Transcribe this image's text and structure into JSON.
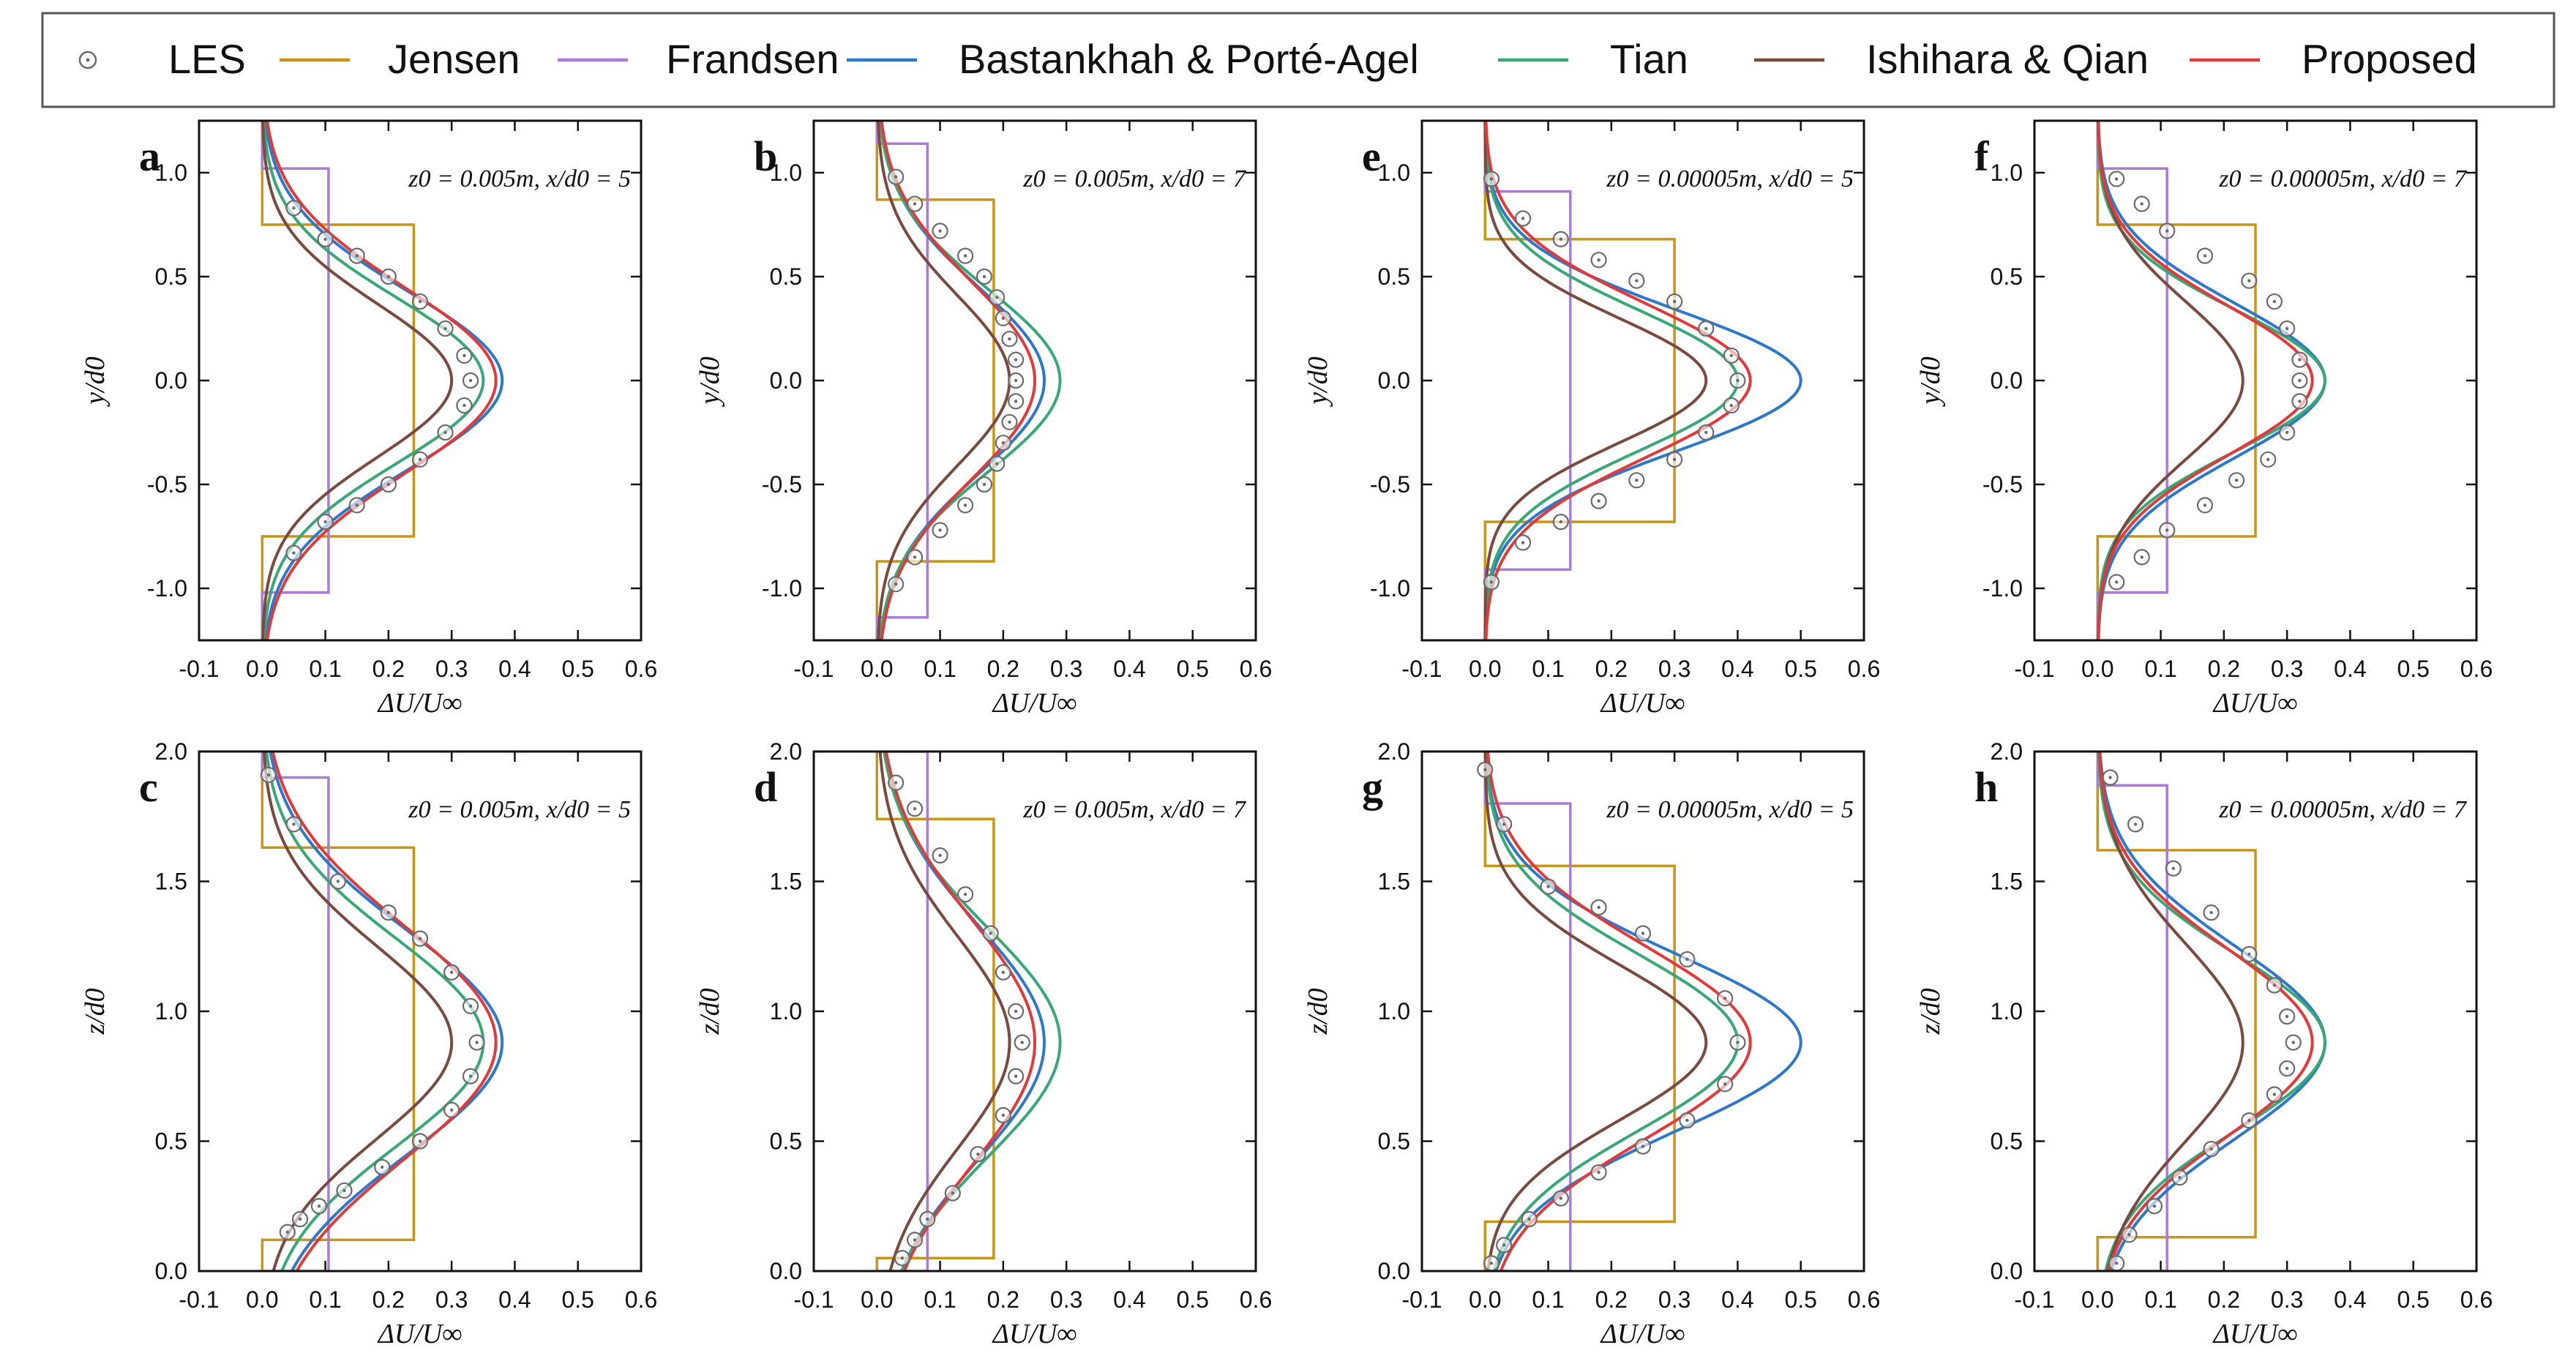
{
  "figure": {
    "legend": {
      "items": [
        {
          "key": "les",
          "label": "LES",
          "kind": "marker"
        },
        {
          "key": "jensen",
          "label": "Jensen",
          "kind": "line"
        },
        {
          "key": "frandsen",
          "label": "Frandsen",
          "kind": "line"
        },
        {
          "key": "bpa",
          "label": "Bastankhah & Porté-Agel",
          "kind": "line"
        },
        {
          "key": "tian",
          "label": "Tian",
          "kind": "line"
        },
        {
          "key": "iq",
          "label": "Ishihara & Qian",
          "kind": "line"
        },
        {
          "key": "proposed",
          "label": "Proposed",
          "kind": "line"
        }
      ]
    },
    "colors": {
      "les": "#6b6b6b",
      "jensen": "#c9941a",
      "frandsen": "#a97dd6",
      "bpa": "#2d78c8",
      "tian": "#3aa876",
      "iq": "#7a4a3e",
      "proposed": "#e23a3a"
    }
  },
  "chart_data": [
    {
      "id": "a",
      "panel_label": "a",
      "type": "line",
      "xlabel": "ΔU/U∞",
      "ylabel": "y/d0",
      "annotation": "z0 = 0.005m, x/d0 = 5",
      "xlim": [
        -0.1,
        0.6
      ],
      "ylim": [
        -1.25,
        1.25
      ],
      "xticks": [
        -0.1,
        0,
        0.1,
        0.2,
        0.3,
        0.4,
        0.5,
        0.6
      ],
      "yticks": [
        -1,
        -0.5,
        0,
        0.5,
        1
      ],
      "xtick_labels": [
        "-0.1",
        "0.0",
        "0.1",
        "0.2",
        "0.3",
        "0.4",
        "0.5",
        "0.6"
      ],
      "ytick_labels": [
        "-1.0",
        "-0.5",
        "0.0",
        "0.5",
        "1.0"
      ],
      "center": 0,
      "jensen": {
        "amp": 0.24,
        "half": 0.75
      },
      "frandsen": {
        "amp": 0.105,
        "half": 1.02
      },
      "les_points": [
        [
          0.05,
          0.83
        ],
        [
          0.1,
          0.68
        ],
        [
          0.15,
          0.6
        ],
        [
          0.2,
          0.5
        ],
        [
          0.25,
          0.38
        ],
        [
          0.29,
          0.25
        ],
        [
          0.32,
          0.12
        ],
        [
          0.33,
          0
        ],
        [
          0.32,
          -0.12
        ],
        [
          0.29,
          -0.25
        ],
        [
          0.25,
          -0.38
        ],
        [
          0.2,
          -0.5
        ],
        [
          0.15,
          -0.6
        ],
        [
          0.1,
          -0.68
        ],
        [
          0.05,
          -0.83
        ]
      ],
      "series": [
        {
          "name": "bpa",
          "amp": 0.38,
          "sigma": 0.43
        },
        {
          "name": "tian",
          "amp": 0.35,
          "sigma": 0.4
        },
        {
          "name": "iq",
          "amp": 0.3,
          "sigma": 0.37
        },
        {
          "name": "proposed",
          "amp": 0.37,
          "sigma": 0.45
        }
      ]
    },
    {
      "id": "b",
      "panel_label": "b",
      "type": "line",
      "xlabel": "ΔU/U∞",
      "ylabel": "y/d0",
      "annotation": "z0 = 0.005m, x/d0 = 7",
      "xlim": [
        -0.1,
        0.6
      ],
      "ylim": [
        -1.25,
        1.25
      ],
      "xticks": [
        -0.1,
        0,
        0.1,
        0.2,
        0.3,
        0.4,
        0.5,
        0.6
      ],
      "yticks": [
        -1,
        -0.5,
        0,
        0.5,
        1
      ],
      "xtick_labels": [
        "-0.1",
        "0.0",
        "0.1",
        "0.2",
        "0.3",
        "0.4",
        "0.5",
        "0.6"
      ],
      "ytick_labels": [
        "-1.0",
        "-0.5",
        "0.0",
        "0.5",
        "1.0"
      ],
      "center": 0,
      "jensen": {
        "amp": 0.185,
        "half": 0.87
      },
      "frandsen": {
        "amp": 0.08,
        "half": 1.14
      },
      "les_points": [
        [
          0.03,
          0.98
        ],
        [
          0.06,
          0.85
        ],
        [
          0.1,
          0.72
        ],
        [
          0.14,
          0.6
        ],
        [
          0.17,
          0.5
        ],
        [
          0.19,
          0.4
        ],
        [
          0.2,
          0.3
        ],
        [
          0.21,
          0.2
        ],
        [
          0.22,
          0.1
        ],
        [
          0.22,
          0
        ],
        [
          0.22,
          -0.1
        ],
        [
          0.21,
          -0.2
        ],
        [
          0.2,
          -0.3
        ],
        [
          0.19,
          -0.4
        ],
        [
          0.17,
          -0.5
        ],
        [
          0.14,
          -0.6
        ],
        [
          0.1,
          -0.72
        ],
        [
          0.06,
          -0.85
        ],
        [
          0.03,
          -0.98
        ]
      ],
      "series": [
        {
          "name": "bpa",
          "amp": 0.265,
          "sigma": 0.45
        },
        {
          "name": "tian",
          "amp": 0.29,
          "sigma": 0.44
        },
        {
          "name": "iq",
          "amp": 0.21,
          "sigma": 0.41
        },
        {
          "name": "proposed",
          "amp": 0.25,
          "sigma": 0.47
        }
      ]
    },
    {
      "id": "e",
      "panel_label": "e",
      "type": "line",
      "xlabel": "ΔU/U∞",
      "ylabel": "y/d0",
      "annotation": "z0 = 0.00005m, x/d0 = 5",
      "xlim": [
        -0.1,
        0.6
      ],
      "ylim": [
        -1.25,
        1.25
      ],
      "xticks": [
        -0.1,
        0,
        0.1,
        0.2,
        0.3,
        0.4,
        0.5,
        0.6
      ],
      "yticks": [
        -1,
        -0.5,
        0,
        0.5,
        1
      ],
      "xtick_labels": [
        "-0.1",
        "0.0",
        "0.1",
        "0.2",
        "0.3",
        "0.4",
        "0.5",
        "0.6"
      ],
      "ytick_labels": [
        "-1.0",
        "-0.5",
        "0.0",
        "0.5",
        "1.0"
      ],
      "center": 0,
      "jensen": {
        "amp": 0.3,
        "half": 0.68
      },
      "frandsen": {
        "amp": 0.135,
        "half": 0.91
      },
      "les_points": [
        [
          0.01,
          0.97
        ],
        [
          0.06,
          0.78
        ],
        [
          0.12,
          0.68
        ],
        [
          0.18,
          0.58
        ],
        [
          0.24,
          0.48
        ],
        [
          0.3,
          0.38
        ],
        [
          0.35,
          0.25
        ],
        [
          0.39,
          0.12
        ],
        [
          0.4,
          0
        ],
        [
          0.39,
          -0.12
        ],
        [
          0.35,
          -0.25
        ],
        [
          0.3,
          -0.38
        ],
        [
          0.24,
          -0.48
        ],
        [
          0.18,
          -0.58
        ],
        [
          0.12,
          -0.68
        ],
        [
          0.06,
          -0.78
        ],
        [
          0.01,
          -0.97
        ]
      ],
      "series": [
        {
          "name": "bpa",
          "amp": 0.5,
          "sigma": 0.34
        },
        {
          "name": "tian",
          "amp": 0.4,
          "sigma": 0.34
        },
        {
          "name": "iq",
          "amp": 0.35,
          "sigma": 0.3
        },
        {
          "name": "proposed",
          "amp": 0.42,
          "sigma": 0.37
        }
      ]
    },
    {
      "id": "f",
      "panel_label": "f",
      "type": "line",
      "xlabel": "ΔU/U∞",
      "ylabel": "y/d0",
      "annotation": "z0 = 0.00005m, x/d0 = 7",
      "xlim": [
        -0.1,
        0.6
      ],
      "ylim": [
        -1.25,
        1.25
      ],
      "xticks": [
        -0.1,
        0,
        0.1,
        0.2,
        0.3,
        0.4,
        0.5,
        0.6
      ],
      "yticks": [
        -1,
        -0.5,
        0,
        0.5,
        1
      ],
      "xtick_labels": [
        "-0.1",
        "0.0",
        "0.1",
        "0.2",
        "0.3",
        "0.4",
        "0.5",
        "0.6"
      ],
      "ytick_labels": [
        "-1.0",
        "-0.5",
        "0.0",
        "0.5",
        "1.0"
      ],
      "center": 0,
      "jensen": {
        "amp": 0.25,
        "half": 0.75
      },
      "frandsen": {
        "amp": 0.11,
        "half": 1.02
      },
      "les_points": [
        [
          0.03,
          0.97
        ],
        [
          0.07,
          0.85
        ],
        [
          0.11,
          0.72
        ],
        [
          0.17,
          0.6
        ],
        [
          0.24,
          0.48
        ],
        [
          0.28,
          0.38
        ],
        [
          0.3,
          0.25
        ],
        [
          0.32,
          0.1
        ],
        [
          0.32,
          0
        ],
        [
          0.32,
          -0.1
        ],
        [
          0.3,
          -0.25
        ],
        [
          0.27,
          -0.38
        ],
        [
          0.22,
          -0.48
        ],
        [
          0.17,
          -0.6
        ],
        [
          0.11,
          -0.72
        ],
        [
          0.07,
          -0.85
        ],
        [
          0.03,
          -0.97
        ]
      ],
      "series": [
        {
          "name": "bpa",
          "amp": 0.36,
          "sigma": 0.37
        },
        {
          "name": "tian",
          "amp": 0.36,
          "sigma": 0.34
        },
        {
          "name": "iq",
          "amp": 0.23,
          "sigma": 0.38
        },
        {
          "name": "proposed",
          "amp": 0.34,
          "sigma": 0.36
        }
      ]
    },
    {
      "id": "c",
      "panel_label": "c",
      "type": "line",
      "xlabel": "ΔU/U∞",
      "ylabel": "z/d0",
      "annotation": "z0 = 0.005m, x/d0 = 5",
      "xlim": [
        -0.1,
        0.6
      ],
      "ylim": [
        0,
        2
      ],
      "xticks": [
        -0.1,
        0,
        0.1,
        0.2,
        0.3,
        0.4,
        0.5,
        0.6
      ],
      "yticks": [
        0,
        0.5,
        1,
        1.5,
        2
      ],
      "xtick_labels": [
        "-0.1",
        "0.0",
        "0.1",
        "0.2",
        "0.3",
        "0.4",
        "0.5",
        "0.6"
      ],
      "ytick_labels": [
        "0.0",
        "0.5",
        "1.0",
        "1.5",
        "2.0"
      ],
      "center": 0.88,
      "jensen": {
        "amp": 0.24,
        "bottom": 0.12,
        "top": 1.63
      },
      "frandsen": {
        "amp": 0.105,
        "bottom": 0,
        "top": 1.9
      },
      "les_points": [
        [
          0.01,
          1.91
        ],
        [
          0.05,
          1.72
        ],
        [
          0.12,
          1.5
        ],
        [
          0.2,
          1.38
        ],
        [
          0.25,
          1.28
        ],
        [
          0.3,
          1.15
        ],
        [
          0.33,
          1.02
        ],
        [
          0.34,
          0.88
        ],
        [
          0.33,
          0.75
        ],
        [
          0.3,
          0.62
        ],
        [
          0.25,
          0.5
        ],
        [
          0.19,
          0.4
        ],
        [
          0.13,
          0.31
        ],
        [
          0.09,
          0.25
        ],
        [
          0.06,
          0.2
        ],
        [
          0.04,
          0.15
        ]
      ],
      "series": [
        {
          "name": "bpa",
          "amp": 0.38,
          "sigma": 0.43
        },
        {
          "name": "tian",
          "amp": 0.35,
          "sigma": 0.4
        },
        {
          "name": "iq",
          "amp": 0.3,
          "sigma": 0.37
        },
        {
          "name": "proposed",
          "amp": 0.37,
          "sigma": 0.45
        }
      ]
    },
    {
      "id": "d",
      "panel_label": "d",
      "type": "line",
      "xlabel": "ΔU/U∞",
      "ylabel": "z/d0",
      "annotation": "z0 = 0.005m, x/d0 = 7",
      "xlim": [
        -0.1,
        0.6
      ],
      "ylim": [
        0,
        2
      ],
      "xticks": [
        -0.1,
        0,
        0.1,
        0.2,
        0.3,
        0.4,
        0.5,
        0.6
      ],
      "yticks": [
        0,
        0.5,
        1,
        1.5,
        2
      ],
      "xtick_labels": [
        "-0.1",
        "0.0",
        "0.1",
        "0.2",
        "0.3",
        "0.4",
        "0.5",
        "0.6"
      ],
      "ytick_labels": [
        "0.0",
        "0.5",
        "1.0",
        "1.5",
        "2.0"
      ],
      "center": 0.88,
      "jensen": {
        "amp": 0.185,
        "bottom": 0.05,
        "top": 1.74
      },
      "frandsen": {
        "amp": 0.08,
        "bottom": 0,
        "top": 2
      },
      "les_points": [
        [
          0.03,
          1.88
        ],
        [
          0.06,
          1.78
        ],
        [
          0.1,
          1.6
        ],
        [
          0.14,
          1.45
        ],
        [
          0.18,
          1.3
        ],
        [
          0.2,
          1.15
        ],
        [
          0.22,
          1.0
        ],
        [
          0.23,
          0.88
        ],
        [
          0.22,
          0.75
        ],
        [
          0.2,
          0.6
        ],
        [
          0.16,
          0.45
        ],
        [
          0.12,
          0.3
        ],
        [
          0.08,
          0.2
        ],
        [
          0.06,
          0.12
        ],
        [
          0.04,
          0.05
        ]
      ],
      "series": [
        {
          "name": "bpa",
          "amp": 0.265,
          "sigma": 0.45
        },
        {
          "name": "tian",
          "amp": 0.29,
          "sigma": 0.44
        },
        {
          "name": "iq",
          "amp": 0.21,
          "sigma": 0.41
        },
        {
          "name": "proposed",
          "amp": 0.25,
          "sigma": 0.47
        }
      ]
    },
    {
      "id": "g",
      "panel_label": "g",
      "type": "line",
      "xlabel": "ΔU/U∞",
      "ylabel": "z/d0",
      "annotation": "z0 = 0.00005m, x/d0 = 5",
      "xlim": [
        -0.1,
        0.6
      ],
      "ylim": [
        0,
        2
      ],
      "xticks": [
        -0.1,
        0,
        0.1,
        0.2,
        0.3,
        0.4,
        0.5,
        0.6
      ],
      "yticks": [
        0,
        0.5,
        1,
        1.5,
        2
      ],
      "xtick_labels": [
        "-0.1",
        "0.0",
        "0.1",
        "0.2",
        "0.3",
        "0.4",
        "0.5",
        "0.6"
      ],
      "ytick_labels": [
        "0.0",
        "0.5",
        "1.0",
        "1.5",
        "2.0"
      ],
      "center": 0.88,
      "jensen": {
        "amp": 0.3,
        "bottom": 0.19,
        "top": 1.56
      },
      "frandsen": {
        "amp": 0.135,
        "bottom": 0,
        "top": 1.8
      },
      "les_points": [
        [
          0.0,
          1.93
        ],
        [
          0.03,
          1.72
        ],
        [
          0.1,
          1.48
        ],
        [
          0.18,
          1.4
        ],
        [
          0.25,
          1.3
        ],
        [
          0.32,
          1.2
        ],
        [
          0.38,
          1.05
        ],
        [
          0.4,
          0.88
        ],
        [
          0.38,
          0.72
        ],
        [
          0.32,
          0.58
        ],
        [
          0.25,
          0.48
        ],
        [
          0.18,
          0.38
        ],
        [
          0.12,
          0.28
        ],
        [
          0.07,
          0.2
        ],
        [
          0.03,
          0.1
        ],
        [
          0.01,
          0.03
        ]
      ],
      "series": [
        {
          "name": "bpa",
          "amp": 0.5,
          "sigma": 0.34
        },
        {
          "name": "tian",
          "amp": 0.4,
          "sigma": 0.34
        },
        {
          "name": "iq",
          "amp": 0.35,
          "sigma": 0.3
        },
        {
          "name": "proposed",
          "amp": 0.42,
          "sigma": 0.37
        }
      ]
    },
    {
      "id": "h",
      "panel_label": "h",
      "type": "line",
      "xlabel": "ΔU/U∞",
      "ylabel": "z/d0",
      "annotation": "z0 = 0.00005m, x/d0 = 7",
      "xlim": [
        -0.1,
        0.6
      ],
      "ylim": [
        0,
        2
      ],
      "xticks": [
        -0.1,
        0,
        0.1,
        0.2,
        0.3,
        0.4,
        0.5,
        0.6
      ],
      "yticks": [
        0,
        0.5,
        1,
        1.5,
        2
      ],
      "xtick_labels": [
        "-0.1",
        "0.0",
        "0.1",
        "0.2",
        "0.3",
        "0.4",
        "0.5",
        "0.6"
      ],
      "ytick_labels": [
        "0.0",
        "0.5",
        "1.0",
        "1.5",
        "2.0"
      ],
      "center": 0.88,
      "jensen": {
        "amp": 0.25,
        "bottom": 0.13,
        "top": 1.62
      },
      "frandsen": {
        "amp": 0.11,
        "bottom": 0,
        "top": 1.87
      },
      "les_points": [
        [
          0.02,
          1.9
        ],
        [
          0.06,
          1.72
        ],
        [
          0.12,
          1.55
        ],
        [
          0.18,
          1.38
        ],
        [
          0.24,
          1.22
        ],
        [
          0.28,
          1.1
        ],
        [
          0.3,
          0.98
        ],
        [
          0.31,
          0.88
        ],
        [
          0.3,
          0.78
        ],
        [
          0.28,
          0.68
        ],
        [
          0.24,
          0.58
        ],
        [
          0.18,
          0.47
        ],
        [
          0.13,
          0.36
        ],
        [
          0.09,
          0.25
        ],
        [
          0.05,
          0.14
        ],
        [
          0.03,
          0.03
        ]
      ],
      "series": [
        {
          "name": "bpa",
          "amp": 0.36,
          "sigma": 0.37
        },
        {
          "name": "tian",
          "amp": 0.36,
          "sigma": 0.34
        },
        {
          "name": "iq",
          "amp": 0.23,
          "sigma": 0.38
        },
        {
          "name": "proposed",
          "amp": 0.34,
          "sigma": 0.36
        }
      ]
    }
  ]
}
